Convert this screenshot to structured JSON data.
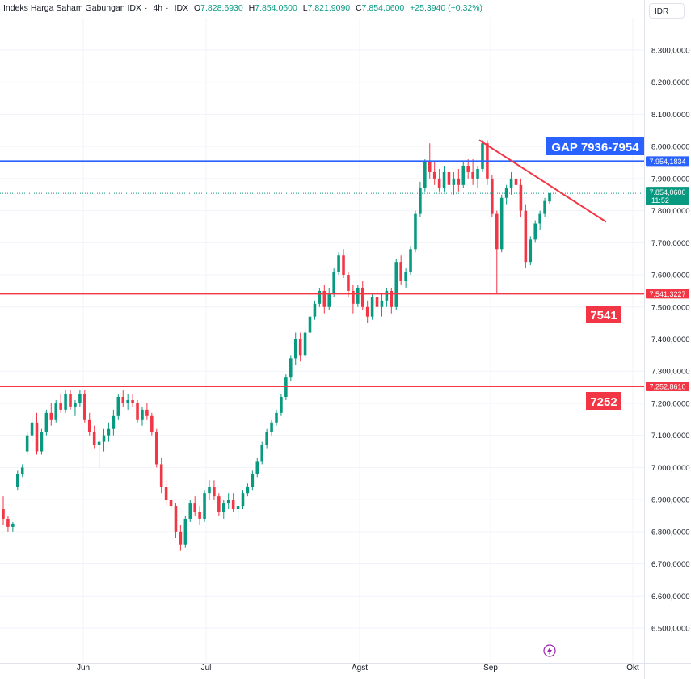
{
  "header": {
    "title": "Indeks Harga Saham Gabungan IDX",
    "interval": "4h",
    "exchange": "IDX",
    "open_label": "O",
    "open": "7.828,6930",
    "high_label": "H",
    "high": "7.854,0600",
    "low_label": "L",
    "low": "7.821,9090",
    "close_label": "C",
    "close": "7.854,0600",
    "change": "+25,3940 (+0,32%)"
  },
  "currency_button": "IDR",
  "price_axis": {
    "ticks": [
      "8.300,0000",
      "8.200,0000",
      "8.100,0000",
      "8.000,0000",
      "7.900,0000",
      "7.800,0000",
      "7.700,0000",
      "7.600,0000",
      "7.500,0000",
      "7.400,0000",
      "7.300,0000",
      "7.200,0000",
      "7.100,0000",
      "7.000,0000",
      "6.900,0000",
      "6.800,0000",
      "6.700,0000",
      "6.600,0000",
      "6.500,0000"
    ]
  },
  "time_axis": {
    "labels": [
      "Jun",
      "Jul",
      "Agst",
      "Sep",
      "Okt"
    ]
  },
  "levels": {
    "gap": {
      "value": 7954.1834,
      "tag": "7.954,1834",
      "annotation": "GAP 7936-7954"
    },
    "support_1": {
      "value": 7541.3227,
      "tag": "7.541,3227",
      "annotation": "7541"
    },
    "support_2": {
      "value": 7252.861,
      "tag": "7.252,8610",
      "annotation": "7252"
    },
    "last_price": {
      "value": 7854.06,
      "tag": "7.854,0600",
      "countdown": "11:52"
    }
  },
  "colors": {
    "up": "#089981",
    "down": "#f23645",
    "gap_line": "#2962ff",
    "support_line": "#f23645",
    "grid": "#f0f3fa",
    "axis_text": "#131722"
  },
  "chart_data": {
    "type": "candlestick",
    "title": "Indeks Harga Saham Gabungan IDX · 4h · IDX",
    "ylim": [
      6450,
      8360
    ],
    "x_axis_labels": [
      "Jun",
      "Jul",
      "Agst",
      "Sep",
      "Okt"
    ],
    "trendline": {
      "from": {
        "date": "2024-08-30",
        "price": 8020
      },
      "to": {
        "date": "2024-09-30",
        "price": 7765
      }
    },
    "candles_ohlc": [
      [
        6870,
        6910,
        6820,
        6840
      ],
      [
        6840,
        6850,
        6800,
        6815
      ],
      [
        6815,
        6830,
        6800,
        6825
      ],
      [
        6940,
        6990,
        6930,
        6980
      ],
      [
        6980,
        7010,
        6970,
        7000
      ],
      [
        7050,
        7110,
        7040,
        7100
      ],
      [
        7100,
        7160,
        7080,
        7140
      ],
      [
        7140,
        7170,
        7040,
        7050
      ],
      [
        7050,
        7120,
        7040,
        7110
      ],
      [
        7110,
        7180,
        7100,
        7170
      ],
      [
        7170,
        7200,
        7130,
        7150
      ],
      [
        7150,
        7210,
        7140,
        7200
      ],
      [
        7200,
        7230,
        7170,
        7180
      ],
      [
        7180,
        7240,
        7170,
        7230
      ],
      [
        7230,
        7240,
        7180,
        7190
      ],
      [
        7190,
        7210,
        7160,
        7200
      ],
      [
        7200,
        7240,
        7190,
        7230
      ],
      [
        7230,
        7240,
        7140,
        7150
      ],
      [
        7150,
        7170,
        7100,
        7110
      ],
      [
        7110,
        7130,
        7060,
        7070
      ],
      [
        7070,
        7090,
        7000,
        7080
      ],
      [
        7080,
        7120,
        7050,
        7100
      ],
      [
        7100,
        7140,
        7080,
        7120
      ],
      [
        7120,
        7180,
        7100,
        7160
      ],
      [
        7160,
        7230,
        7150,
        7220
      ],
      [
        7220,
        7240,
        7190,
        7200
      ],
      [
        7200,
        7230,
        7180,
        7210
      ],
      [
        7210,
        7230,
        7190,
        7200
      ],
      [
        7200,
        7210,
        7140,
        7150
      ],
      [
        7150,
        7190,
        7130,
        7180
      ],
      [
        7180,
        7200,
        7150,
        7160
      ],
      [
        7160,
        7170,
        7100,
        7110
      ],
      [
        7110,
        7120,
        7000,
        7010
      ],
      [
        7010,
        7030,
        6920,
        6940
      ],
      [
        6940,
        6960,
        6880,
        6900
      ],
      [
        6900,
        6920,
        6850,
        6880
      ],
      [
        6880,
        6890,
        6780,
        6800
      ],
      [
        6800,
        6820,
        6740,
        6760
      ],
      [
        6760,
        6850,
        6750,
        6840
      ],
      [
        6840,
        6900,
        6830,
        6890
      ],
      [
        6890,
        6910,
        6850,
        6860
      ],
      [
        6860,
        6880,
        6820,
        6840
      ],
      [
        6840,
        6930,
        6830,
        6920
      ],
      [
        6920,
        6960,
        6900,
        6940
      ],
      [
        6940,
        6960,
        6900,
        6910
      ],
      [
        6910,
        6920,
        6850,
        6860
      ],
      [
        6860,
        6900,
        6840,
        6890
      ],
      [
        6890,
        6920,
        6870,
        6900
      ],
      [
        6900,
        6920,
        6860,
        6870
      ],
      [
        6870,
        6890,
        6840,
        6880
      ],
      [
        6880,
        6930,
        6870,
        6920
      ],
      [
        6920,
        6950,
        6910,
        6940
      ],
      [
        6940,
        6990,
        6930,
        6980
      ],
      [
        6980,
        7030,
        6970,
        7020
      ],
      [
        7020,
        7080,
        7010,
        7070
      ],
      [
        7070,
        7120,
        7060,
        7110
      ],
      [
        7110,
        7150,
        7100,
        7140
      ],
      [
        7140,
        7180,
        7130,
        7170
      ],
      [
        7170,
        7230,
        7160,
        7220
      ],
      [
        7220,
        7290,
        7210,
        7280
      ],
      [
        7280,
        7350,
        7270,
        7340
      ],
      [
        7340,
        7420,
        7320,
        7400
      ],
      [
        7400,
        7420,
        7330,
        7350
      ],
      [
        7350,
        7440,
        7340,
        7420
      ],
      [
        7420,
        7480,
        7410,
        7470
      ],
      [
        7470,
        7520,
        7460,
        7510
      ],
      [
        7510,
        7560,
        7500,
        7550
      ],
      [
        7550,
        7570,
        7480,
        7500
      ],
      [
        7500,
        7560,
        7490,
        7540
      ],
      [
        7540,
        7620,
        7530,
        7610
      ],
      [
        7610,
        7670,
        7600,
        7660
      ],
      [
        7660,
        7680,
        7590,
        7600
      ],
      [
        7600,
        7610,
        7530,
        7550
      ],
      [
        7550,
        7570,
        7480,
        7510
      ],
      [
        7510,
        7570,
        7500,
        7560
      ],
      [
        7560,
        7580,
        7490,
        7500
      ],
      [
        7500,
        7520,
        7450,
        7470
      ],
      [
        7470,
        7540,
        7460,
        7530
      ],
      [
        7530,
        7560,
        7490,
        7500
      ],
      [
        7500,
        7540,
        7470,
        7520
      ],
      [
        7520,
        7560,
        7500,
        7550
      ],
      [
        7550,
        7560,
        7480,
        7500
      ],
      [
        7500,
        7650,
        7490,
        7640
      ],
      [
        7640,
        7660,
        7570,
        7580
      ],
      [
        7580,
        7620,
        7560,
        7610
      ],
      [
        7610,
        7690,
        7600,
        7680
      ],
      [
        7680,
        7800,
        7670,
        7790
      ],
      [
        7790,
        7890,
        7780,
        7870
      ],
      [
        7870,
        7960,
        7860,
        7950
      ],
      [
        7950,
        8010,
        7900,
        7920
      ],
      [
        7920,
        7950,
        7880,
        7900
      ],
      [
        7900,
        7930,
        7860,
        7870
      ],
      [
        7870,
        7940,
        7860,
        7920
      ],
      [
        7920,
        7950,
        7870,
        7880
      ],
      [
        7880,
        7920,
        7850,
        7900
      ],
      [
        7900,
        7930,
        7860,
        7880
      ],
      [
        7880,
        7950,
        7870,
        7940
      ],
      [
        7940,
        7960,
        7900,
        7920
      ],
      [
        7920,
        7960,
        7880,
        7900
      ],
      [
        7900,
        7940,
        7870,
        7930
      ],
      [
        7930,
        8020,
        7920,
        8010
      ],
      [
        8010,
        8020,
        7880,
        7900
      ],
      [
        7900,
        7910,
        7780,
        7790
      ],
      [
        7790,
        7800,
        7540,
        7680
      ],
      [
        7680,
        7850,
        7670,
        7840
      ],
      [
        7840,
        7880,
        7820,
        7870
      ],
      [
        7870,
        7920,
        7850,
        7900
      ],
      [
        7900,
        7930,
        7860,
        7880
      ],
      [
        7880,
        7900,
        7780,
        7800
      ],
      [
        7800,
        7820,
        7620,
        7640
      ],
      [
        7640,
        7720,
        7630,
        7710
      ],
      [
        7710,
        7770,
        7700,
        7760
      ],
      [
        7760,
        7800,
        7740,
        7790
      ],
      [
        7790,
        7840,
        7780,
        7830
      ],
      [
        7828.693,
        7854.06,
        7821.909,
        7854.06
      ]
    ]
  }
}
